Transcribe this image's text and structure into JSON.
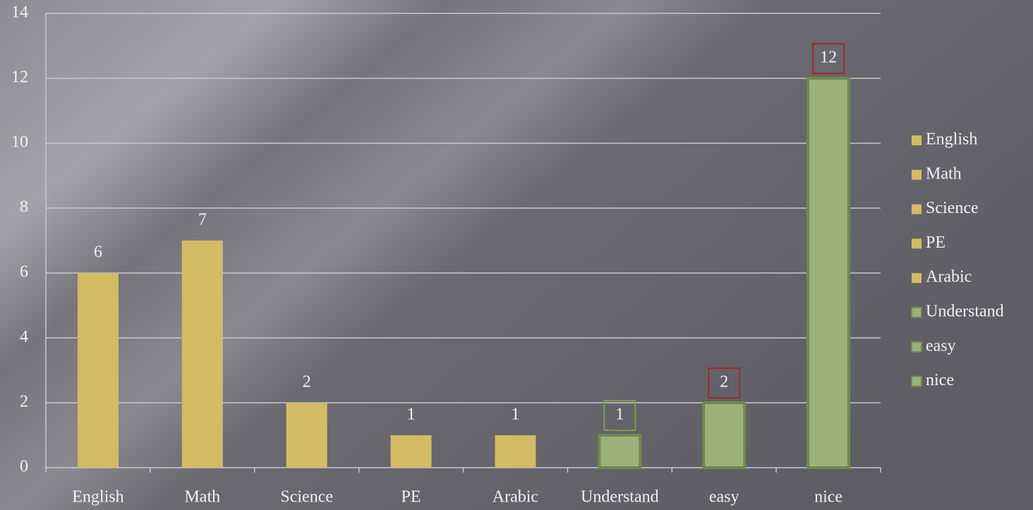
{
  "chart_data": {
    "type": "bar",
    "categories": [
      "English",
      "Math",
      "Science",
      "PE",
      "Arabic",
      "Understand",
      "easy",
      "nice"
    ],
    "values": [
      6,
      7,
      2,
      1,
      1,
      1,
      2,
      12
    ],
    "colors": [
      "#d3bb63",
      "#d3bb63",
      "#d3bb63",
      "#d3bb63",
      "#d3bb63",
      "#9bb07b",
      "#9bb07b",
      "#9bb07b"
    ],
    "borders": [
      null,
      null,
      null,
      null,
      null,
      "#6f8a4e",
      "#6f8a4e",
      "#6f8a4e"
    ],
    "label_borders": [
      null,
      null,
      null,
      null,
      null,
      "#7c9a55",
      "#a3282a",
      "#a3282a"
    ],
    "ylim": [
      0,
      14
    ],
    "yticks": [
      0,
      2,
      4,
      6,
      8,
      10,
      12,
      14
    ],
    "grid": true,
    "legend": "right"
  }
}
